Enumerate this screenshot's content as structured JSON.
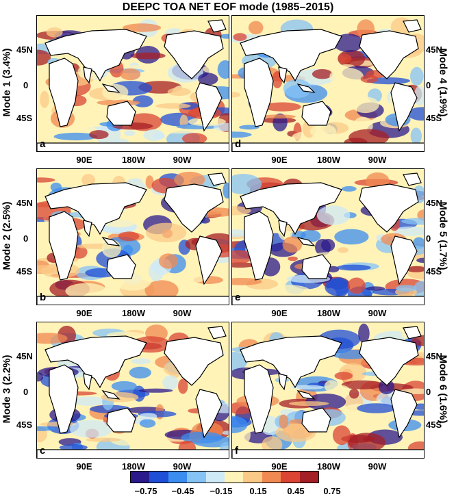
{
  "title": "DEEPC TOA NET EOF mode (1985–2015)",
  "lat_labels": [
    "45N",
    "0",
    "45S"
  ],
  "lon_labels": [
    "90E",
    "180W",
    "90W"
  ],
  "panels": [
    {
      "letter": "a",
      "mode": "Mode 1 (3.4%)",
      "side": "left"
    },
    {
      "letter": "b",
      "mode": "Mode 2 (2.5%)",
      "side": "left"
    },
    {
      "letter": "c",
      "mode": "Mode 3 (2.2%)",
      "side": "left"
    },
    {
      "letter": "d",
      "mode": "Mode 4 (1.9%)",
      "side": "right"
    },
    {
      "letter": "e",
      "mode": "Mode 5 (1.7%)",
      "side": "right"
    },
    {
      "letter": "f",
      "mode": "Mode 6 (1.6%)",
      "side": "right"
    }
  ],
  "colorbar": {
    "ticks": [
      "−0.75",
      "−0.45",
      "−0.15",
      "0.15",
      "0.45",
      "0.75"
    ],
    "colors": [
      "#2a1a8c",
      "#1f4fd6",
      "#3c8df0",
      "#86c3f5",
      "#cfeaf7",
      "#fff3b8",
      "#fbc987",
      "#f08a52",
      "#da4534",
      "#a51f26"
    ]
  },
  "colors": {
    "land": "#ffffff",
    "ocean_base": "#fff3b8",
    "coast": "#000000"
  }
}
